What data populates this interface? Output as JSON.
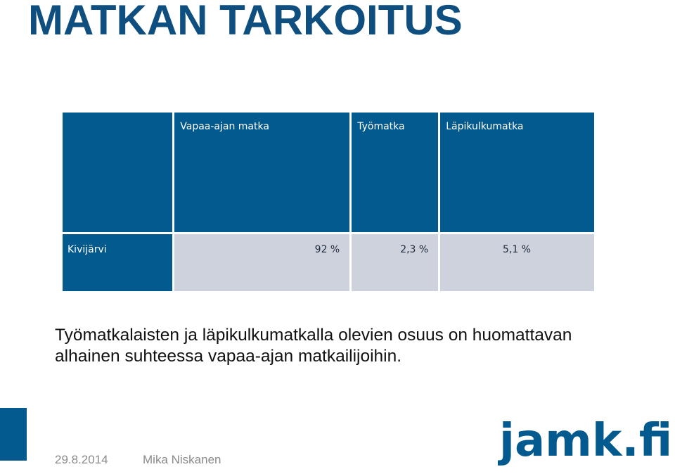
{
  "slide": {
    "title": "MATKAN TARKOITUS",
    "table": {
      "headers": [
        "",
        "Vapaa-ajan matka",
        "Työmatka",
        "Läpikulkumatka"
      ],
      "rows": [
        {
          "label": "Kivijärvi",
          "values": [
            "92 %",
            "2,3 %",
            "5,1 %"
          ]
        }
      ]
    },
    "body": "Työmatkalaisten ja läpikulkumatkalla olevien osuus on huomattavan alhainen suhteessa vapaa-ajan matkailijoihin.",
    "footer": {
      "date": "29.8.2014",
      "author": "Mika Niskanen"
    },
    "logo": {
      "text": "jamk.fi"
    },
    "colors": {
      "brand": "#035a8e",
      "title": "#0e4f80",
      "cell": "#cdd2dd"
    }
  }
}
